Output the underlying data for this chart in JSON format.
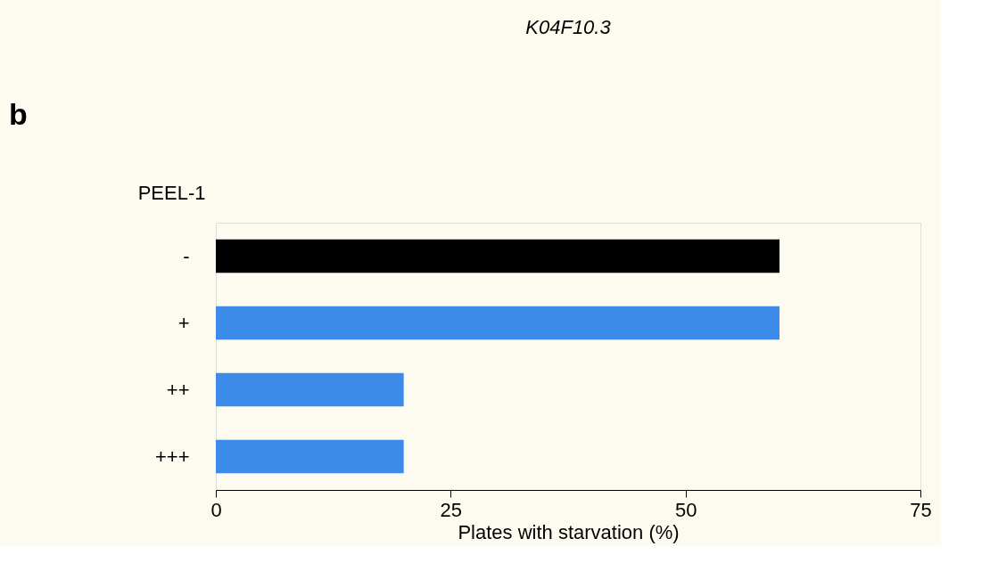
{
  "chart_data": {
    "type": "bar",
    "orientation": "horizontal",
    "title": "K04F10.3",
    "xlabel": "Plates with starvation (%)",
    "ylabel": "PEEL-1",
    "categories": [
      "-",
      "+",
      "++",
      "+++"
    ],
    "values": [
      60,
      60,
      20,
      20
    ],
    "colors": [
      "#000000",
      "#3d8be8",
      "#3d8be8",
      "#3d8be8"
    ],
    "xlim": [
      0,
      75
    ],
    "xticks": [
      0,
      25,
      50,
      75
    ],
    "grid": false,
    "annotations": [
      "b"
    ]
  }
}
